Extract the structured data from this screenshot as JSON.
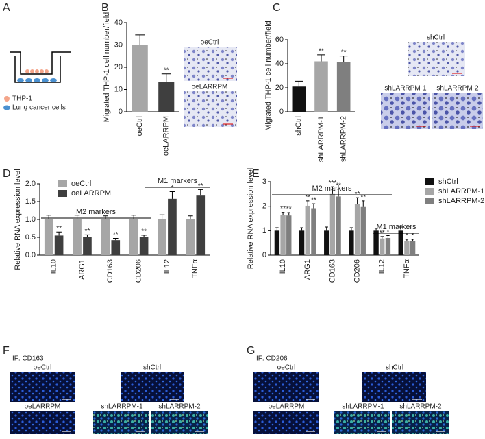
{
  "panel_labels": [
    "A",
    "B",
    "C",
    "D",
    "E",
    "F",
    "G"
  ],
  "schematic": {
    "legend": [
      "THP-1",
      "Lung cancer cells"
    ]
  },
  "transwell_images": {
    "B": [
      "oeCtrl",
      "oeLARRPM"
    ],
    "C": [
      "shCtrl",
      "shLARRPM-1",
      "shLARRPM-2"
    ]
  },
  "if_panels": [
    {
      "title": "IF: CD163",
      "captions": [
        "oeCtrl",
        "shCtrl",
        "oeLARRPM",
        "shLARRPM-1",
        "shLARRPM-2"
      ]
    },
    {
      "title": "IF: CD206",
      "captions": [
        "oeCtrl",
        "shCtrl",
        "oeLARRPM",
        "shLARRPM-1",
        "shLARRPM-2"
      ]
    }
  ],
  "chart_data": [
    {
      "type": "bar",
      "ylabel": "Migrated THP-1 cell number/field",
      "categories": [
        "oeCtrl",
        "oeLARRPM"
      ],
      "values": [
        30,
        13.5
      ],
      "errors": [
        4.5,
        3.5
      ],
      "sig": [
        null,
        "**"
      ],
      "colors": [
        "#a6a6a6",
        "#3f3f3f"
      ],
      "ylim": [
        0,
        40
      ],
      "yticks": [
        0,
        10,
        20,
        30,
        40
      ]
    },
    {
      "type": "bar",
      "ylabel": "Migrated THP-1 cell number/field",
      "categories": [
        "shCtrl",
        "shLARRPM-1",
        "shLARRPM-2"
      ],
      "values": [
        21,
        42,
        41.5
      ],
      "errors": [
        4.5,
        5.5,
        5
      ],
      "sig": [
        null,
        "**",
        "**"
      ],
      "colors": [
        "#111111",
        "#a6a6a6",
        "#7f7f7f"
      ],
      "ylim": [
        0,
        60
      ],
      "yticks": [
        0,
        20,
        40,
        60
      ]
    },
    {
      "type": "grouped-bar",
      "ylabel": "Relative RNA expression level",
      "categories": [
        "IL10",
        "ARG1",
        "CD163",
        "CD206",
        "IL12",
        "TNFα"
      ],
      "series": [
        {
          "name": "oeCtrl",
          "color": "#a6a6a6",
          "values": [
            1,
            1,
            1,
            1,
            1,
            1
          ],
          "errors": [
            0.12,
            0.12,
            0.1,
            0.12,
            0.13,
            0.1
          ]
        },
        {
          "name": "oeLARRPM",
          "color": "#3f3f3f",
          "values": [
            0.55,
            0.5,
            0.42,
            0.5,
            1.58,
            1.67
          ],
          "errors": [
            0.1,
            0.07,
            0.05,
            0.06,
            0.2,
            0.17
          ],
          "sig": [
            "**",
            "**",
            "**",
            "**",
            "*",
            "**"
          ]
        }
      ],
      "ylim": [
        0,
        2
      ],
      "yticks": [
        {
          "value": 0,
          "label": "0.0"
        },
        0.5,
        {
          "value": 1,
          "label": "1.0"
        },
        1.5,
        {
          "value": 2,
          "label": "2.0"
        }
      ],
      "annotations": [
        "M2 markers",
        "M1 markers"
      ]
    },
    {
      "type": "grouped-bar",
      "ylabel": "Relative RNA expression level",
      "categories": [
        "IL10",
        "ARG1",
        "CD163",
        "CD206",
        "IL12",
        "TNFα"
      ],
      "series": [
        {
          "name": "shCtrl",
          "color": "#111111",
          "values": [
            1,
            1,
            1,
            1,
            1,
            1
          ],
          "errors": [
            0.12,
            0.12,
            0.15,
            0.12,
            0.1,
            0.15
          ]
        },
        {
          "name": "shLARRPM-1",
          "color": "#a6a6a6",
          "values": [
            1.65,
            2.02,
            2.5,
            2.1,
            0.68,
            0.57
          ],
          "errors": [
            0.1,
            0.2,
            0.3,
            0.25,
            0.08,
            0.08
          ],
          "sig": [
            "**",
            "**",
            "***",
            "**",
            "**",
            "*"
          ]
        },
        {
          "name": "shLARRPM-2",
          "color": "#7f7f7f",
          "values": [
            1.62,
            1.92,
            2.4,
            1.97,
            0.7,
            0.58
          ],
          "errors": [
            0.12,
            0.18,
            0.3,
            0.25,
            0.1,
            0.07
          ],
          "sig": [
            "**",
            "**",
            "**",
            "**",
            "*",
            "*"
          ]
        }
      ],
      "ylim": [
        0,
        3
      ],
      "yticks": [
        0,
        1,
        2,
        3
      ],
      "annotations": [
        "M2 markers",
        "M1 markers"
      ]
    }
  ]
}
